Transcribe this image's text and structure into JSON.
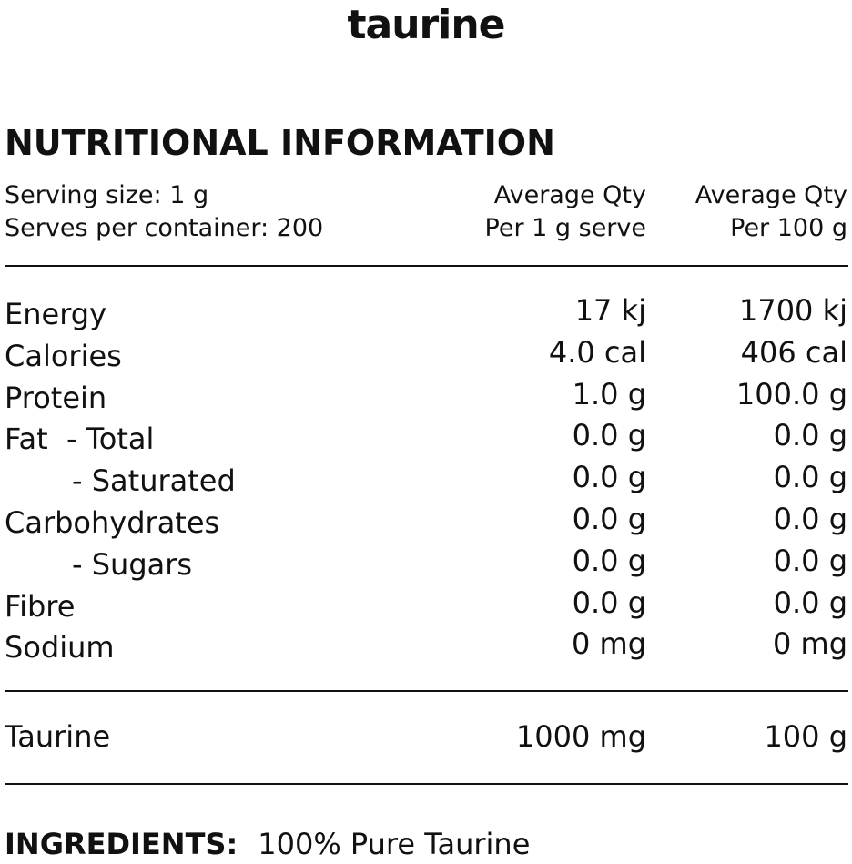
{
  "brand": "taurine",
  "heading": "NUTRITIONAL INFORMATION",
  "serving": {
    "size": "Serving size: 1 g",
    "per_container": "Serves per container: 200",
    "col_a_line1": "Average Qty",
    "col_a_line2": "Per 1 g serve",
    "col_b_line1": "Average Qty",
    "col_b_line2": "Per 100 g"
  },
  "nutrients": [
    {
      "label": "Energy",
      "per_serve": "17 kj",
      "per_100g": "1700 kj"
    },
    {
      "label": "Calories",
      "per_serve": "4.0 cal",
      "per_100g": "406 cal"
    },
    {
      "label": "Protein",
      "per_serve": "1.0 g",
      "per_100g": "100.0 g"
    },
    {
      "label": "Fat  - Total",
      "per_serve": "0.0 g",
      "per_100g": "0.0 g"
    },
    {
      "label": "- Saturated",
      "per_serve": "0.0 g",
      "per_100g": "0.0 g"
    },
    {
      "label": "Carbohydrates",
      "per_serve": "0.0 g",
      "per_100g": "0.0 g"
    },
    {
      "label": "- Sugars",
      "per_serve": "0.0 g",
      "per_100g": "0.0 g"
    },
    {
      "label": "Fibre",
      "per_serve": "0.0 g",
      "per_100g": "0.0 g"
    },
    {
      "label": "Sodium",
      "per_serve": "0 mg",
      "per_100g": "0 mg"
    }
  ],
  "taurine_row": {
    "label": "Taurine",
    "per_serve": "1000 mg",
    "per_100g": "100 g"
  },
  "ingredients": {
    "label": "INGREDIENTS:",
    "value": "100% Pure Taurine"
  }
}
